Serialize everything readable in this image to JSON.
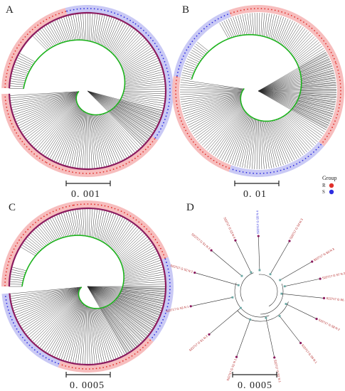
{
  "panels": [
    {
      "id": "A",
      "letter": "A",
      "scale_label": "0. 001"
    },
    {
      "id": "B",
      "letter": "B",
      "scale_label": "0. 01"
    },
    {
      "id": "C",
      "letter": "C",
      "scale_label": "0. 0005"
    },
    {
      "id": "D",
      "letter": "D",
      "scale_label": "0. 0005"
    }
  ],
  "legend": {
    "title": "Group",
    "items": [
      {
        "key": "R",
        "color": "#e0302b"
      },
      {
        "key": "S",
        "color": "#2d2de0"
      }
    ]
  },
  "colors": {
    "group_R": "#e0302b",
    "group_S": "#2d2de0",
    "band_R": "#f7bdbd",
    "band_S": "#c9c9f5",
    "ring": "#8b1a5e",
    "spine": "#1db31d",
    "branch": "#2a2a2a",
    "leaf_dot": "#8b1a5e",
    "node_dot": "#6aa9a5"
  },
  "panel_d_leaves": [
    {
      "label": "S22717 G S5 N 4",
      "group": "S"
    },
    {
      "label": "S22717 G S4 N 3",
      "group": "R"
    },
    {
      "label": "S22717 G S3 N 3",
      "group": "R"
    },
    {
      "label": "S22717 G S7 N 2",
      "group": "R"
    },
    {
      "label": "S22717 G S6 N 2",
      "group": "R"
    },
    {
      "label": "S22717 G S8 N 2",
      "group": "R"
    },
    {
      "label": "S22717 G S9 N 1",
      "group": "R"
    },
    {
      "label": "S22717 G S2 N 1",
      "group": "R"
    },
    {
      "label": "S22717 G S1 N 1",
      "group": "R"
    },
    {
      "label": "S22717 G S1 N 2",
      "group": "R"
    },
    {
      "label": "S22717 G S3 N 1",
      "group": "R"
    },
    {
      "label": "S22717 G S2 N 2",
      "group": "R"
    },
    {
      "label": "S22717 G S1 N 3",
      "group": "R"
    },
    {
      "label": "S22717 G S3 N 4",
      "group": "R"
    }
  ]
}
